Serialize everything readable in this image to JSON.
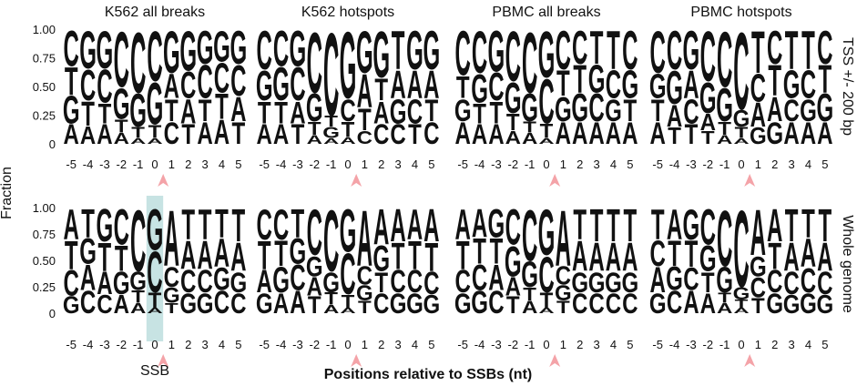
{
  "figure": {
    "y_label": "Fraction",
    "x_label": "Positions relative to SSBs (nt)",
    "row_labels": [
      "TSS +/- 200 bp",
      "Whole genome"
    ],
    "annotation": "SSB"
  },
  "chart_data": [
    {
      "type": "logo",
      "title": "K562 all breaks",
      "x": [
        -5,
        -4,
        -3,
        -2,
        -1,
        0,
        1,
        2,
        3,
        4,
        5
      ],
      "xlim": [
        -5.5,
        5.5
      ],
      "ylim": [
        0,
        1
      ],
      "yticks": [
        {
          "value": 0,
          "label": "0"
        },
        {
          "value": 0.25,
          "label": "0.25"
        },
        {
          "value": 0.5,
          "label": "0.50"
        },
        {
          "value": 0.75,
          "label": "0.75"
        },
        {
          "value": 1,
          "label": "1.00"
        }
      ],
      "series": [
        {
          "name": "A",
          "color": "#22a04b",
          "values": [
            0.18,
            0.16,
            0.18,
            0.1,
            0.05,
            0.05,
            0.22,
            0.22,
            0.2,
            0.22,
            0.22
          ]
        },
        {
          "name": "C",
          "color": "#1a5fa8",
          "values": [
            0.32,
            0.28,
            0.3,
            0.5,
            0.55,
            0.45,
            0.2,
            0.24,
            0.3,
            0.27,
            0.28
          ]
        },
        {
          "name": "G",
          "color": "#f5a623",
          "values": [
            0.25,
            0.34,
            0.34,
            0.28,
            0.3,
            0.38,
            0.38,
            0.36,
            0.3,
            0.28,
            0.3
          ]
        },
        {
          "name": "T",
          "color": "#e8312f",
          "values": [
            0.25,
            0.22,
            0.18,
            0.12,
            0.1,
            0.12,
            0.2,
            0.18,
            0.2,
            0.23,
            0.2
          ]
        }
      ]
    },
    {
      "type": "logo",
      "title": "K562 hotspots",
      "x": [
        -5,
        -4,
        -3,
        -2,
        -1,
        0,
        1,
        2,
        3,
        4,
        5
      ],
      "xlim": [
        -5.5,
        5.5
      ],
      "ylim": [
        0,
        1
      ],
      "series": [
        {
          "name": "A",
          "color": "#22a04b",
          "values": [
            0.18,
            0.18,
            0.2,
            0.08,
            0.05,
            0.06,
            0.3,
            0.2,
            0.25,
            0.25,
            0.25
          ]
        },
        {
          "name": "C",
          "color": "#1a5fa8",
          "values": [
            0.35,
            0.32,
            0.3,
            0.55,
            0.75,
            0.2,
            0.12,
            0.18,
            0.18,
            0.22,
            0.2
          ]
        },
        {
          "name": "G",
          "color": "#f5a623",
          "values": [
            0.27,
            0.3,
            0.32,
            0.25,
            0.1,
            0.6,
            0.38,
            0.42,
            0.22,
            0.35,
            0.35
          ]
        },
        {
          "name": "T",
          "color": "#e8312f",
          "values": [
            0.2,
            0.2,
            0.18,
            0.12,
            0.1,
            0.14,
            0.2,
            0.2,
            0.35,
            0.18,
            0.2
          ]
        }
      ]
    },
    {
      "type": "logo",
      "title": "PBMC all breaks",
      "x": [
        -5,
        -4,
        -3,
        -2,
        -1,
        0,
        1,
        2,
        3,
        4,
        5
      ],
      "xlim": [
        -5.5,
        5.5
      ],
      "ylim": [
        0,
        1
      ],
      "series": [
        {
          "name": "A",
          "color": "#22a04b",
          "values": [
            0.2,
            0.18,
            0.18,
            0.12,
            0.1,
            0.05,
            0.2,
            0.2,
            0.2,
            0.2,
            0.2
          ]
        },
        {
          "name": "C",
          "color": "#1a5fa8",
          "values": [
            0.4,
            0.38,
            0.25,
            0.45,
            0.55,
            0.4,
            0.35,
            0.3,
            0.25,
            0.25,
            0.35
          ]
        },
        {
          "name": "G",
          "color": "#f5a623",
          "values": [
            0.2,
            0.26,
            0.37,
            0.28,
            0.25,
            0.42,
            0.22,
            0.25,
            0.25,
            0.2,
            0.25
          ]
        },
        {
          "name": "T",
          "color": "#e8312f",
          "values": [
            0.2,
            0.18,
            0.2,
            0.15,
            0.1,
            0.13,
            0.23,
            0.25,
            0.3,
            0.35,
            0.2
          ]
        }
      ]
    },
    {
      "type": "logo",
      "title": "PBMC hotspots",
      "x": [
        -5,
        -4,
        -3,
        -2,
        -1,
        0,
        1,
        2,
        3,
        4,
        5
      ],
      "xlim": [
        -5.5,
        5.5
      ],
      "ylim": [
        0,
        1
      ],
      "series": [
        {
          "name": "A",
          "color": "#22a04b",
          "values": [
            0.2,
            0.2,
            0.25,
            0.15,
            0.08,
            0.05,
            0.22,
            0.22,
            0.2,
            0.2,
            0.2
          ]
        },
        {
          "name": "C",
          "color": "#1a5fa8",
          "values": [
            0.38,
            0.35,
            0.22,
            0.45,
            0.5,
            0.7,
            0.25,
            0.3,
            0.2,
            0.25,
            0.3
          ]
        },
        {
          "name": "G",
          "color": "#f5a623",
          "values": [
            0.22,
            0.3,
            0.35,
            0.28,
            0.3,
            0.15,
            0.15,
            0.2,
            0.25,
            0.2,
            0.25
          ]
        },
        {
          "name": "T",
          "color": "#e8312f",
          "values": [
            0.2,
            0.15,
            0.18,
            0.12,
            0.12,
            0.1,
            0.38,
            0.28,
            0.35,
            0.35,
            0.25
          ]
        }
      ]
    },
    {
      "type": "logo",
      "x": [
        -5,
        -4,
        -3,
        -2,
        -1,
        0,
        1,
        2,
        3,
        4,
        5
      ],
      "xlim": [
        -5.5,
        5.5
      ],
      "ylim": [
        0,
        1
      ],
      "yticks": [
        {
          "value": 0,
          "label": "0"
        },
        {
          "value": 0.25,
          "label": "0.25"
        },
        {
          "value": 0.5,
          "label": "0.50"
        },
        {
          "value": 0.75,
          "label": "0.75"
        },
        {
          "value": 1,
          "label": "1.00"
        }
      ],
      "series": [
        {
          "name": "A",
          "color": "#22a04b",
          "values": [
            0.3,
            0.25,
            0.22,
            0.18,
            0.1,
            0.05,
            0.55,
            0.28,
            0.28,
            0.28,
            0.28
          ]
        },
        {
          "name": "C",
          "color": "#1a5fa8",
          "values": [
            0.25,
            0.22,
            0.18,
            0.35,
            0.6,
            0.4,
            0.2,
            0.22,
            0.22,
            0.22,
            0.2
          ]
        },
        {
          "name": "G",
          "color": "#f5a623",
          "values": [
            0.17,
            0.25,
            0.32,
            0.22,
            0.18,
            0.4,
            0.15,
            0.2,
            0.2,
            0.22,
            0.2
          ]
        },
        {
          "name": "T",
          "color": "#e8312f",
          "values": [
            0.28,
            0.28,
            0.28,
            0.25,
            0.12,
            0.15,
            0.1,
            0.3,
            0.3,
            0.28,
            0.32
          ]
        }
      ]
    },
    {
      "type": "logo",
      "x": [
        -5,
        -4,
        -3,
        -2,
        -1,
        0,
        1,
        2,
        3,
        4,
        5
      ],
      "xlim": [
        -5.5,
        5.5
      ],
      "ylim": [
        0,
        1
      ],
      "series": [
        {
          "name": "A",
          "color": "#22a04b",
          "values": [
            0.22,
            0.2,
            0.22,
            0.18,
            0.08,
            0.05,
            0.55,
            0.35,
            0.32,
            0.3,
            0.32
          ]
        },
        {
          "name": "C",
          "color": "#1a5fa8",
          "values": [
            0.3,
            0.3,
            0.25,
            0.45,
            0.6,
            0.4,
            0.18,
            0.2,
            0.22,
            0.22,
            0.22
          ]
        },
        {
          "name": "G",
          "color": "#f5a623",
          "values": [
            0.2,
            0.25,
            0.25,
            0.2,
            0.2,
            0.42,
            0.15,
            0.25,
            0.2,
            0.2,
            0.18
          ]
        },
        {
          "name": "T",
          "color": "#e8312f",
          "values": [
            0.28,
            0.25,
            0.28,
            0.17,
            0.12,
            0.13,
            0.12,
            0.2,
            0.26,
            0.28,
            0.28
          ]
        }
      ]
    },
    {
      "type": "logo",
      "x": [
        -5,
        -4,
        -3,
        -2,
        -1,
        0,
        1,
        2,
        3,
        4,
        5
      ],
      "xlim": [
        -5.5,
        5.5
      ],
      "ylim": [
        0,
        1
      ],
      "series": [
        {
          "name": "A",
          "color": "#22a04b",
          "values": [
            0.3,
            0.28,
            0.25,
            0.18,
            0.12,
            0.05,
            0.55,
            0.3,
            0.28,
            0.28,
            0.28
          ]
        },
        {
          "name": "C",
          "color": "#1a5fa8",
          "values": [
            0.22,
            0.25,
            0.22,
            0.35,
            0.5,
            0.35,
            0.18,
            0.2,
            0.2,
            0.2,
            0.2
          ]
        },
        {
          "name": "G",
          "color": "#f5a623",
          "values": [
            0.2,
            0.22,
            0.28,
            0.3,
            0.25,
            0.45,
            0.15,
            0.2,
            0.2,
            0.2,
            0.2
          ]
        },
        {
          "name": "T",
          "color": "#e8312f",
          "values": [
            0.28,
            0.25,
            0.25,
            0.17,
            0.13,
            0.15,
            0.12,
            0.3,
            0.32,
            0.32,
            0.32
          ]
        }
      ]
    },
    {
      "type": "logo",
      "x": [
        -5,
        -4,
        -3,
        -2,
        -1,
        0,
        1,
        2,
        3,
        4,
        5
      ],
      "xlim": [
        -5.5,
        5.5
      ],
      "ylim": [
        0,
        1
      ],
      "series": [
        {
          "name": "A",
          "color": "#22a04b",
          "values": [
            0.25,
            0.3,
            0.22,
            0.2,
            0.1,
            0.05,
            0.45,
            0.32,
            0.28,
            0.28,
            0.28
          ]
        },
        {
          "name": "C",
          "color": "#1a5fa8",
          "values": [
            0.25,
            0.22,
            0.22,
            0.35,
            0.55,
            0.75,
            0.2,
            0.22,
            0.22,
            0.24,
            0.22
          ]
        },
        {
          "name": "G",
          "color": "#f5a623",
          "values": [
            0.2,
            0.23,
            0.3,
            0.25,
            0.25,
            0.12,
            0.2,
            0.2,
            0.18,
            0.2,
            0.18
          ]
        },
        {
          "name": "T",
          "color": "#e8312f",
          "values": [
            0.3,
            0.25,
            0.26,
            0.2,
            0.1,
            0.08,
            0.15,
            0.26,
            0.32,
            0.28,
            0.32
          ]
        }
      ]
    }
  ]
}
